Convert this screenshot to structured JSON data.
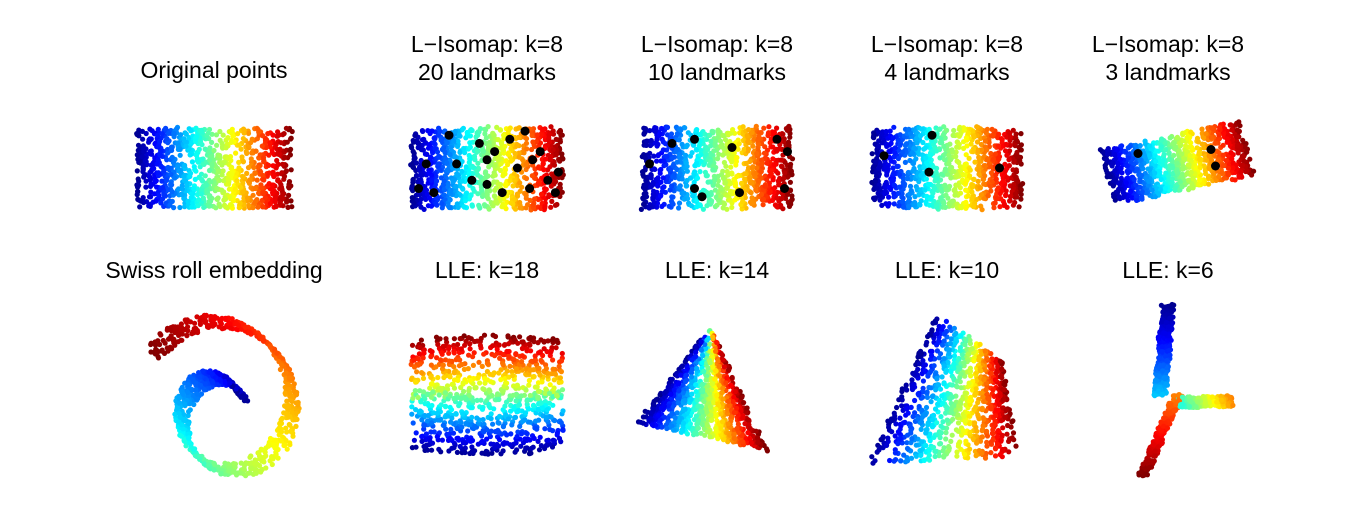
{
  "figure": {
    "colormap": [
      "#00008f",
      "#0000ff",
      "#0080ff",
      "#00ffff",
      "#80ff80",
      "#ffff00",
      "#ff8000",
      "#ff0000",
      "#800000"
    ],
    "landmark_color": "#000000"
  },
  "chart_data": [
    {
      "type": "scatter",
      "shape": "rectangle",
      "title_lines": [
        "Original points"
      ],
      "xlim": [
        0,
        1
      ],
      "ylim": [
        0,
        1
      ],
      "landmarks": []
    },
    {
      "type": "scatter",
      "shape": "rectangle",
      "title_lines": [
        "L−Isomap: k=8",
        "20 landmarks"
      ],
      "xlim": [
        0,
        1
      ],
      "ylim": [
        0,
        1
      ],
      "landmarks": [
        [
          0.1,
          0.55
        ],
        [
          0.05,
          0.25
        ],
        [
          0.25,
          0.9
        ],
        [
          0.3,
          0.55
        ],
        [
          0.4,
          0.35
        ],
        [
          0.45,
          0.8
        ],
        [
          0.5,
          0.3
        ],
        [
          0.55,
          0.7
        ],
        [
          0.6,
          0.2
        ],
        [
          0.65,
          0.85
        ],
        [
          0.7,
          0.5
        ],
        [
          0.75,
          0.95
        ],
        [
          0.78,
          0.25
        ],
        [
          0.8,
          0.6
        ],
        [
          0.85,
          0.7
        ],
        [
          0.9,
          0.35
        ],
        [
          0.95,
          0.2
        ],
        [
          0.97,
          0.45
        ],
        [
          0.15,
          0.2
        ],
        [
          0.5,
          0.6
        ]
      ]
    },
    {
      "type": "scatter",
      "shape": "rectangle",
      "title_lines": [
        "L−Isomap: k=8",
        "10 landmarks"
      ],
      "xlim": [
        0,
        1
      ],
      "ylim": [
        0,
        1
      ],
      "landmarks": [
        [
          0.05,
          0.55
        ],
        [
          0.2,
          0.8
        ],
        [
          0.35,
          0.85
        ],
        [
          0.35,
          0.25
        ],
        [
          0.4,
          0.15
        ],
        [
          0.6,
          0.75
        ],
        [
          0.65,
          0.2
        ],
        [
          0.9,
          0.85
        ],
        [
          0.95,
          0.25
        ],
        [
          0.97,
          0.7
        ]
      ]
    },
    {
      "type": "scatter",
      "shape": "rectangle",
      "title_lines": [
        "L−Isomap: k=8",
        "4 landmarks"
      ],
      "xlim": [
        0,
        1
      ],
      "ylim": [
        0,
        1
      ],
      "landmarks": [
        [
          0.08,
          0.65
        ],
        [
          0.4,
          0.9
        ],
        [
          0.38,
          0.45
        ],
        [
          0.85,
          0.5
        ]
      ]
    },
    {
      "type": "scatter",
      "shape": "parallelogram",
      "title_lines": [
        "L−Isomap: k=8",
        "3 landmarks"
      ],
      "xlim": [
        0,
        1
      ],
      "ylim": [
        0,
        1
      ],
      "landmarks": [
        [
          0.25,
          0.8
        ],
        [
          0.75,
          0.6
        ],
        [
          0.75,
          0.3
        ]
      ]
    },
    {
      "type": "scatter",
      "shape": "swissroll",
      "title_lines": [
        "Swiss roll embedding"
      ],
      "landmarks": []
    },
    {
      "type": "scatter",
      "shape": "lle_rect",
      "title_lines": [
        "LLE: k=18"
      ],
      "landmarks": []
    },
    {
      "type": "scatter",
      "shape": "lle_tri",
      "title_lines": [
        "LLE: k=14"
      ],
      "landmarks": []
    },
    {
      "type": "scatter",
      "shape": "lle_trap",
      "title_lines": [
        "LLE: k=10"
      ],
      "landmarks": []
    },
    {
      "type": "scatter",
      "shape": "lle_star",
      "title_lines": [
        "LLE: k=6"
      ],
      "landmarks": []
    }
  ]
}
